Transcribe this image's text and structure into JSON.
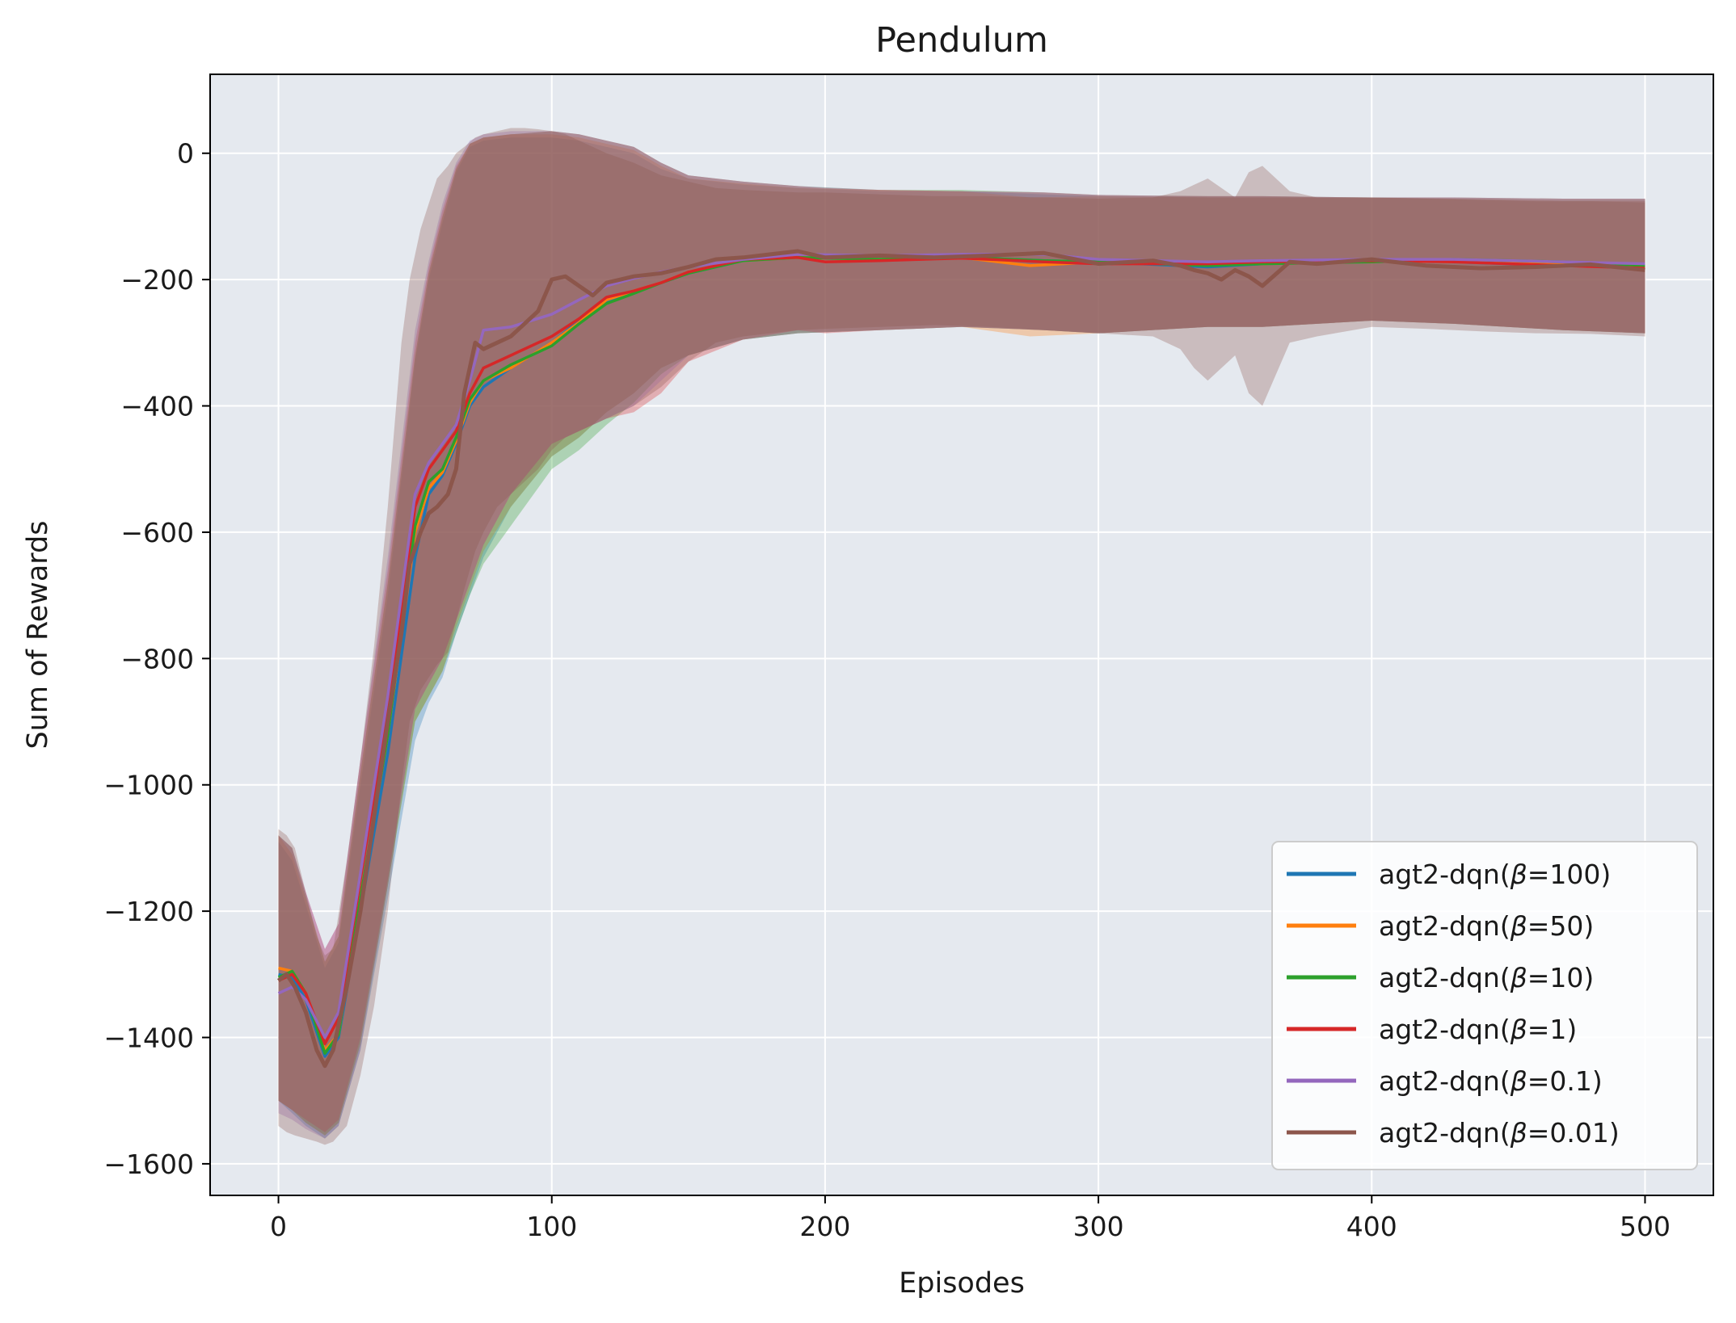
{
  "chart_data": {
    "type": "line",
    "title": "Pendulum",
    "xlabel": "Episodes",
    "ylabel": "Sum of Rewards",
    "xlim": [
      -25,
      525
    ],
    "ylim": [
      -1650,
      125
    ],
    "xticks": [
      0,
      100,
      200,
      300,
      400,
      500
    ],
    "xtick_labels": [
      "0",
      "100",
      "200",
      "300",
      "400",
      "500"
    ],
    "yticks": [
      0,
      -200,
      -400,
      -600,
      -800,
      -1000,
      -1200,
      -1400,
      -1600
    ],
    "ytick_labels": [
      "0",
      "−200",
      "−400",
      "−600",
      "−800",
      "−1000",
      "−1200",
      "−1400",
      "−1600"
    ],
    "grid": true,
    "legend_position": "lower-right",
    "background": "#e5e9ef",
    "series": [
      {
        "name": "agt2-dqn(β=100)",
        "label_prefix": "agt2-dqn(",
        "label_symbol": "β",
        "label_suffix": "=100)",
        "color": "#1f77b4",
        "x": [
          0,
          5,
          10,
          17,
          22,
          30,
          40,
          50,
          55,
          60,
          65,
          70,
          75,
          85,
          100,
          110,
          120,
          130,
          140,
          150,
          170,
          190,
          220,
          250,
          280,
          300,
          340,
          360,
          400,
          430,
          470,
          500
        ],
        "y": [
          -1300,
          -1305,
          -1340,
          -1430,
          -1400,
          -1200,
          -950,
          -640,
          -540,
          -510,
          -460,
          -400,
          -370,
          -340,
          -300,
          -265,
          -235,
          -220,
          -205,
          -190,
          -170,
          -165,
          -168,
          -165,
          -170,
          -172,
          -180,
          -175,
          -170,
          -172,
          -178,
          -180
        ],
        "upper": [
          -1090,
          -1120,
          -1190,
          -1290,
          -1250,
          -1000,
          -700,
          -330,
          -200,
          -110,
          -30,
          10,
          20,
          25,
          25,
          20,
          10,
          0,
          -25,
          -40,
          -50,
          -55,
          -60,
          -60,
          -65,
          -68,
          -70,
          -70,
          -70,
          -72,
          -75,
          -75
        ],
        "lower": [
          -1500,
          -1520,
          -1540,
          -1560,
          -1540,
          -1420,
          -1180,
          -930,
          -870,
          -830,
          -760,
          -700,
          -640,
          -560,
          -480,
          -450,
          -410,
          -380,
          -340,
          -320,
          -295,
          -285,
          -280,
          -275,
          -280,
          -285,
          -275,
          -275,
          -265,
          -270,
          -280,
          -285
        ]
      },
      {
        "name": "agt2-dqn(β=50)",
        "label_prefix": "agt2-dqn(",
        "label_symbol": "β",
        "label_suffix": "=50)",
        "color": "#ff7f0e",
        "x": [
          0,
          5,
          10,
          17,
          22,
          30,
          40,
          50,
          55,
          60,
          65,
          70,
          75,
          85,
          100,
          110,
          120,
          130,
          140,
          150,
          170,
          190,
          220,
          250,
          275,
          300,
          340,
          360,
          400,
          430,
          470,
          500
        ],
        "y": [
          -1290,
          -1295,
          -1330,
          -1420,
          -1395,
          -1180,
          -920,
          -600,
          -530,
          -505,
          -455,
          -395,
          -360,
          -340,
          -300,
          -268,
          -232,
          -218,
          -205,
          -188,
          -170,
          -165,
          -168,
          -165,
          -178,
          -172,
          -175,
          -175,
          -170,
          -172,
          -176,
          -180
        ],
        "upper": [
          -1080,
          -1110,
          -1180,
          -1280,
          -1240,
          -980,
          -680,
          -320,
          -190,
          -100,
          -25,
          15,
          25,
          30,
          30,
          25,
          15,
          5,
          -20,
          -40,
          -48,
          -55,
          -58,
          -60,
          -70,
          -68,
          -70,
          -70,
          -70,
          -72,
          -75,
          -75
        ],
        "lower": [
          -1500,
          -1515,
          -1535,
          -1555,
          -1535,
          -1410,
          -1160,
          -900,
          -860,
          -820,
          -750,
          -690,
          -630,
          -560,
          -480,
          -450,
          -410,
          -380,
          -340,
          -320,
          -295,
          -285,
          -280,
          -275,
          -290,
          -285,
          -275,
          -275,
          -265,
          -270,
          -280,
          -285
        ]
      },
      {
        "name": "agt2-dqn(β=10)",
        "label_prefix": "agt2-dqn(",
        "label_symbol": "β",
        "label_suffix": "=10)",
        "color": "#2ca02c",
        "x": [
          0,
          5,
          10,
          17,
          22,
          30,
          40,
          50,
          55,
          60,
          65,
          70,
          75,
          85,
          100,
          110,
          120,
          130,
          140,
          150,
          170,
          190,
          220,
          250,
          280,
          300,
          340,
          360,
          400,
          430,
          470,
          500
        ],
        "y": [
          -1305,
          -1295,
          -1330,
          -1425,
          -1395,
          -1180,
          -920,
          -590,
          -520,
          -500,
          -450,
          -390,
          -360,
          -335,
          -305,
          -270,
          -238,
          -222,
          -205,
          -190,
          -170,
          -165,
          -168,
          -165,
          -170,
          -172,
          -178,
          -175,
          -172,
          -168,
          -172,
          -178
        ],
        "upper": [
          -1080,
          -1100,
          -1175,
          -1280,
          -1240,
          -980,
          -680,
          -320,
          -190,
          -100,
          -25,
          15,
          25,
          30,
          35,
          30,
          20,
          10,
          -15,
          -35,
          -45,
          -52,
          -58,
          -58,
          -62,
          -66,
          -68,
          -68,
          -70,
          -70,
          -72,
          -72
        ],
        "lower": [
          -1500,
          -1515,
          -1535,
          -1555,
          -1535,
          -1410,
          -1160,
          -900,
          -860,
          -820,
          -760,
          -700,
          -650,
          -590,
          -500,
          -470,
          -430,
          -395,
          -350,
          -320,
          -295,
          -285,
          -280,
          -275,
          -280,
          -285,
          -275,
          -275,
          -265,
          -270,
          -280,
          -285
        ]
      },
      {
        "name": "agt2-dqn(β=1)",
        "label_prefix": "agt2-dqn(",
        "label_symbol": "β",
        "label_suffix": "=1)",
        "color": "#d62728",
        "x": [
          0,
          5,
          10,
          17,
          22,
          30,
          40,
          50,
          55,
          60,
          65,
          70,
          75,
          85,
          100,
          110,
          120,
          130,
          140,
          150,
          170,
          190,
          200,
          220,
          250,
          280,
          300,
          340,
          360,
          400,
          430,
          470,
          500
        ],
        "y": [
          -1310,
          -1300,
          -1330,
          -1410,
          -1370,
          -1150,
          -880,
          -560,
          -500,
          -470,
          -440,
          -380,
          -340,
          -320,
          -290,
          -262,
          -228,
          -218,
          -205,
          -188,
          -168,
          -165,
          -172,
          -170,
          -166,
          -172,
          -175,
          -175,
          -172,
          -170,
          -172,
          -178,
          -182
        ],
        "upper": [
          -1080,
          -1100,
          -1170,
          -1260,
          -1220,
          -960,
          -660,
          -300,
          -180,
          -90,
          -20,
          15,
          25,
          30,
          35,
          30,
          20,
          10,
          -15,
          -35,
          -45,
          -52,
          -55,
          -58,
          -60,
          -62,
          -66,
          -68,
          -68,
          -70,
          -70,
          -72,
          -72
        ],
        "lower": [
          -1500,
          -1515,
          -1530,
          -1550,
          -1530,
          -1400,
          -1150,
          -880,
          -840,
          -800,
          -740,
          -680,
          -620,
          -540,
          -460,
          -440,
          -420,
          -410,
          -380,
          -330,
          -295,
          -280,
          -285,
          -280,
          -275,
          -280,
          -285,
          -275,
          -275,
          -265,
          -270,
          -280,
          -285
        ]
      },
      {
        "name": "agt2-dqn(β=0.1)",
        "label_prefix": "agt2-dqn(",
        "label_symbol": "β",
        "label_suffix": "=0.1)",
        "color": "#9467bd",
        "x": [
          0,
          5,
          10,
          17,
          22,
          30,
          40,
          50,
          55,
          60,
          65,
          70,
          75,
          85,
          100,
          110,
          120,
          130,
          140,
          150,
          170,
          190,
          220,
          250,
          280,
          300,
          340,
          360,
          400,
          430,
          470,
          500
        ],
        "y": [
          -1330,
          -1320,
          -1340,
          -1400,
          -1360,
          -1140,
          -860,
          -540,
          -490,
          -460,
          -430,
          -360,
          -280,
          -275,
          -255,
          -232,
          -210,
          -198,
          -188,
          -180,
          -168,
          -160,
          -162,
          -160,
          -160,
          -168,
          -172,
          -170,
          -168,
          -168,
          -172,
          -175
        ],
        "upper": [
          -1080,
          -1100,
          -1170,
          -1260,
          -1220,
          -960,
          -640,
          -280,
          -170,
          -80,
          -15,
          20,
          30,
          35,
          35,
          30,
          20,
          10,
          -15,
          -35,
          -45,
          -52,
          -58,
          -60,
          -62,
          -66,
          -68,
          -68,
          -70,
          -70,
          -72,
          -72
        ],
        "lower": [
          -1520,
          -1530,
          -1545,
          -1560,
          -1540,
          -1420,
          -1160,
          -880,
          -840,
          -800,
          -740,
          -680,
          -620,
          -540,
          -460,
          -440,
          -420,
          -400,
          -360,
          -320,
          -295,
          -285,
          -280,
          -275,
          -280,
          -285,
          -275,
          -275,
          -265,
          -270,
          -280,
          -285
        ]
      },
      {
        "name": "agt2-dqn(β=0.01)",
        "label_prefix": "agt2-dqn(",
        "label_symbol": "β",
        "label_suffix": "=0.01)",
        "color": "#8c564b",
        "x": [
          0,
          3,
          6,
          10,
          14,
          17,
          20,
          25,
          30,
          35,
          40,
          45,
          48,
          52,
          55,
          58,
          62,
          65,
          68,
          72,
          75,
          80,
          85,
          90,
          95,
          100,
          105,
          110,
          115,
          120,
          130,
          140,
          150,
          160,
          170,
          180,
          190,
          200,
          220,
          240,
          260,
          280,
          300,
          320,
          330,
          335,
          340,
          345,
          350,
          355,
          360,
          370,
          380,
          400,
          420,
          440,
          460,
          480,
          500
        ],
        "y": [
          -1310,
          -1300,
          -1320,
          -1360,
          -1420,
          -1445,
          -1420,
          -1320,
          -1200,
          -1050,
          -900,
          -760,
          -650,
          -600,
          -570,
          -560,
          -540,
          -500,
          -380,
          -300,
          -310,
          -300,
          -290,
          -270,
          -250,
          -200,
          -195,
          -210,
          -225,
          -205,
          -195,
          -190,
          -180,
          -168,
          -165,
          -160,
          -155,
          -165,
          -162,
          -165,
          -162,
          -158,
          -175,
          -170,
          -178,
          -185,
          -190,
          -200,
          -185,
          -195,
          -210,
          -172,
          -175,
          -168,
          -178,
          -182,
          -180,
          -176,
          -185
        ],
        "upper": [
          -1070,
          -1080,
          -1100,
          -1170,
          -1240,
          -1270,
          -1260,
          -1120,
          -960,
          -780,
          -560,
          -300,
          -200,
          -120,
          -80,
          -40,
          -20,
          0,
          10,
          25,
          30,
          35,
          40,
          40,
          38,
          35,
          30,
          20,
          10,
          0,
          -15,
          -35,
          -45,
          -55,
          -58,
          -60,
          -62,
          -62,
          -65,
          -68,
          -68,
          -70,
          -72,
          -70,
          -60,
          -50,
          -40,
          -55,
          -70,
          -30,
          -20,
          -60,
          -70,
          -70,
          -72,
          -74,
          -76,
          -76,
          -78
        ],
        "lower": [
          -1540,
          -1550,
          -1555,
          -1560,
          -1565,
          -1570,
          -1565,
          -1540,
          -1460,
          -1350,
          -1200,
          -1000,
          -900,
          -850,
          -830,
          -810,
          -790,
          -740,
          -690,
          -630,
          -600,
          -560,
          -540,
          -520,
          -500,
          -470,
          -450,
          -440,
          -430,
          -420,
          -400,
          -370,
          -330,
          -300,
          -290,
          -285,
          -280,
          -278,
          -275,
          -272,
          -275,
          -280,
          -285,
          -290,
          -310,
          -340,
          -360,
          -340,
          -320,
          -380,
          -400,
          -300,
          -290,
          -275,
          -278,
          -282,
          -285,
          -286,
          -290
        ]
      }
    ]
  }
}
